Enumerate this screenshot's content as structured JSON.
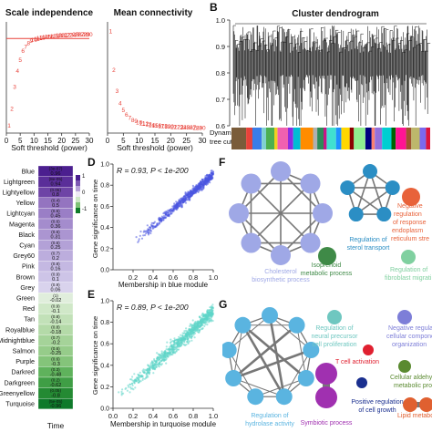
{
  "figure": {
    "panel_labels": [
      "B",
      "D",
      "E",
      "F",
      "G"
    ]
  },
  "chart_data": [
    {
      "id": "scale_independence",
      "type": "scatter",
      "title": "Scale independence",
      "xlabel": "Soft threshold (power)",
      "ylabel": "",
      "xlim": [
        0,
        30
      ],
      "ylim": [
        0,
        1
      ],
      "x_ticks": [
        0,
        5,
        10,
        15,
        20,
        25,
        30
      ],
      "point_color": "#e8423a",
      "threshold_color": "#e8423a",
      "threshold": 0.85,
      "points": [
        [
          1,
          0.07
        ],
        [
          2,
          0.22
        ],
        [
          3,
          0.42
        ],
        [
          4,
          0.56
        ],
        [
          5,
          0.66
        ],
        [
          6,
          0.74
        ],
        [
          7,
          0.78
        ],
        [
          8,
          0.81
        ],
        [
          9,
          0.83
        ],
        [
          10,
          0.84
        ],
        [
          11,
          0.85
        ],
        [
          12,
          0.855
        ],
        [
          13,
          0.86
        ],
        [
          14,
          0.865
        ],
        [
          15,
          0.87
        ],
        [
          16,
          0.87
        ],
        [
          17,
          0.875
        ],
        [
          18,
          0.875
        ],
        [
          19,
          0.88
        ],
        [
          20,
          0.88
        ],
        [
          21,
          0.88
        ],
        [
          22,
          0.885
        ],
        [
          23,
          0.885
        ],
        [
          24,
          0.885
        ],
        [
          25,
          0.89
        ],
        [
          26,
          0.89
        ],
        [
          27,
          0.89
        ],
        [
          28,
          0.89
        ],
        [
          29,
          0.89
        ],
        [
          30,
          0.89
        ]
      ]
    },
    {
      "id": "mean_connectivity",
      "type": "scatter",
      "title": "Mean connectivity",
      "xlabel": "Soft threshold (power)",
      "ylabel": "",
      "xlim": [
        0,
        30
      ],
      "ylim": [
        0,
        1
      ],
      "x_ticks": [
        0,
        5,
        10,
        15,
        20,
        25,
        30
      ],
      "point_color": "#e8423a",
      "points": [
        [
          1,
          0.92
        ],
        [
          2,
          0.57
        ],
        [
          3,
          0.38
        ],
        [
          4,
          0.27
        ],
        [
          5,
          0.21
        ],
        [
          6,
          0.17
        ],
        [
          7,
          0.14
        ],
        [
          8,
          0.12
        ],
        [
          9,
          0.11
        ],
        [
          10,
          0.1
        ],
        [
          11,
          0.09
        ],
        [
          12,
          0.085
        ],
        [
          13,
          0.08
        ],
        [
          14,
          0.075
        ],
        [
          15,
          0.07
        ],
        [
          16,
          0.068
        ],
        [
          17,
          0.066
        ],
        [
          18,
          0.064
        ],
        [
          19,
          0.062
        ],
        [
          20,
          0.06
        ],
        [
          21,
          0.058
        ],
        [
          22,
          0.057
        ],
        [
          23,
          0.056
        ],
        [
          24,
          0.055
        ],
        [
          25,
          0.054
        ],
        [
          26,
          0.053
        ],
        [
          27,
          0.052
        ],
        [
          28,
          0.051
        ],
        [
          29,
          0.05
        ],
        [
          30,
          0.05
        ]
      ]
    },
    {
      "id": "cluster_dendrogram",
      "type": "dendrogram",
      "title": "Cluster dendrogram",
      "ylabel": "",
      "ylim": [
        0.6,
        1.0
      ],
      "y_ticks": [
        "1.0",
        "0.9",
        "0.8",
        "0.7",
        "0.6"
      ],
      "row_label": "Dynamic tree cut",
      "module_colors": [
        "#7a5c3a",
        "#e8423a",
        "#3a7de8",
        "#7fd1d1",
        "#4caf50",
        "#f0d020",
        "#f060b0",
        "#8a2be2",
        "#00bcd4",
        "#ff8c00",
        "#b0b0b0",
        "#2e8b57",
        "#c71585",
        "#40e0d0",
        "#1e90ff",
        "#ffd700",
        "#8b0000",
        "#90ee90",
        "#000080",
        "#fa8072",
        "#9370db",
        "#00ced1",
        "#006400",
        "#ff1493",
        "#a0522d",
        "#bdb76b",
        "#7b68ee",
        "#dc143c"
      ]
    },
    {
      "id": "module_trait_heatmap",
      "type": "heatmap",
      "xlabel": "Time",
      "legend_ticks": [
        "1",
        "0",
        "-1"
      ],
      "rows": [
        {
          "module": "Blue",
          "value": "0.96",
          "p": "(3e-07)",
          "color": "#4b1f8f"
        },
        {
          "module": "Lightgreen",
          "value": "0.94",
          "p": "(8e-05)",
          "color": "#5a2e99"
        },
        {
          "module": "Lightyellow",
          "value": "0.8",
          "p": "(0.05)",
          "color": "#6e44a6"
        },
        {
          "module": "Yellow",
          "value": "0.5",
          "p": "(0.4)",
          "color": "#9474c0"
        },
        {
          "module": "Lightcyan",
          "value": "0.45",
          "p": "(0.5)",
          "color": "#9a7ec6"
        },
        {
          "module": "Magenta",
          "value": "0.36",
          "p": "(0.6)",
          "color": "#a48ccd"
        },
        {
          "module": "Black",
          "value": "0.31",
          "p": "(0.6)",
          "color": "#ab95d1"
        },
        {
          "module": "Cyan",
          "value": "0.25",
          "p": "(0.6)",
          "color": "#b3a1d7"
        },
        {
          "module": "Grey60",
          "value": "0.2",
          "p": "(0.7)",
          "color": "#bcaddd"
        },
        {
          "module": "Pink",
          "value": "0.16",
          "p": "(0.8)",
          "color": "#c4b8e2"
        },
        {
          "module": "Brown",
          "value": "0.1",
          "p": "(0.9)",
          "color": "#cdc4e7"
        },
        {
          "module": "Grey",
          "value": "0.06",
          "p": "(0.9)",
          "color": "#d9d3ed"
        },
        {
          "module": "Green",
          "value": "-0.02",
          "p": "(1)",
          "color": "#e0eedc"
        },
        {
          "module": "Red",
          "value": "-0.1",
          "p": "(0.9)",
          "color": "#d0e8c8"
        },
        {
          "module": "Tan",
          "value": "-0.14",
          "p": "(0.8)",
          "color": "#c2e1b8"
        },
        {
          "module": "Royalblue",
          "value": "-0.18",
          "p": "(0.8)",
          "color": "#b4daa8"
        },
        {
          "module": "Midnightblue",
          "value": "-0.2",
          "p": "(0.7)",
          "color": "#a5d399"
        },
        {
          "module": "Salmon",
          "value": "-0.25",
          "p": "(0.6)",
          "color": "#96cc8a"
        },
        {
          "module": "Purple",
          "value": "-0.3",
          "p": "(0.6)",
          "color": "#84c47a"
        },
        {
          "module": "Darkred",
          "value": "-0.48",
          "p": "(0.3)",
          "color": "#5fb25c"
        },
        {
          "module": "Darkgreen",
          "value": "-0.62",
          "p": "(0.2)",
          "color": "#3f9e45"
        },
        {
          "module": "Greenyellow",
          "value": "-0.8",
          "p": "(0.05)",
          "color": "#248a33"
        },
        {
          "module": "Turquoise",
          "value": "-0.96",
          "p": "(5e-05)",
          "color": "#0f7a2a"
        }
      ]
    },
    {
      "id": "mm_gs_blue",
      "type": "scatter",
      "annotation": "R = 0.93, P < 1e-200",
      "xlabel": "Membership in blue module",
      "ylabel": "Gene significance on time",
      "xlim": [
        0.0,
        1.0
      ],
      "ylim": [
        0.0,
        1.0
      ],
      "x_ticks": [
        "0.2",
        "0.4",
        "0.6",
        "0.8",
        "1.0"
      ],
      "y_ticks": [
        "0.0",
        "0.2",
        "0.4",
        "0.6",
        "0.8",
        "1.0"
      ],
      "point_color": "#4a55e0",
      "trend": {
        "x_from": 0.2,
        "x_to": 1.0,
        "y_from": 0.25,
        "y_to": 0.9
      }
    },
    {
      "id": "mm_gs_turquoise",
      "type": "scatter",
      "annotation": "R = 0.89, P < 1e-200",
      "xlabel": "Membership in turquoise module",
      "ylabel": "Gene significance on time",
      "xlim": [
        0.0,
        1.0
      ],
      "ylim": [
        0.0,
        1.0
      ],
      "x_ticks": [
        "0.0",
        "0.2",
        "0.4",
        "0.6",
        "0.8",
        "1.0"
      ],
      "y_ticks": [
        "0.0",
        "0.2",
        "0.4",
        "0.6",
        "0.8",
        "1.0"
      ],
      "point_color": "#5fd6c8",
      "trend": {
        "x_from": 0.05,
        "x_to": 1.0,
        "y_from": 0.1,
        "y_to": 0.9
      }
    }
  ],
  "networks_f": {
    "labels": [
      {
        "text": "Cholesterol biosynthetic process",
        "color": "#9fa8e6"
      },
      {
        "text": "Isoprenoid metabolic process",
        "color": "#3f8a47"
      },
      {
        "text": "Regulation of sterol transport",
        "color": "#2b8ec4"
      },
      {
        "text": "Negative regulation of response to endoplasmic reticulum stress",
        "color": "#e8623a"
      },
      {
        "text": "Regulation of fibroblast migration",
        "color": "#80d0a0"
      }
    ]
  },
  "networks_g": {
    "labels": [
      {
        "text": "Regulation of hydrolase activity",
        "color": "#5ab4e0"
      },
      {
        "text": "Regulation of neural precursor cell proliferation",
        "color": "#6fc7c0"
      },
      {
        "text": "Negative regulation of cellular component organization",
        "color": "#7d7ed8"
      },
      {
        "text": "T cell activation",
        "color": "#e02030"
      },
      {
        "text": "Positive regulation of cell growth",
        "color": "#1a2f8f"
      },
      {
        "text": "Cellular aldehyde metabolic process",
        "color": "#5a8a30"
      },
      {
        "text": "Symbiotic process",
        "color": "#a030b0"
      },
      {
        "text": "Lipid metabolic process",
        "color": "#e06030"
      }
    ]
  }
}
